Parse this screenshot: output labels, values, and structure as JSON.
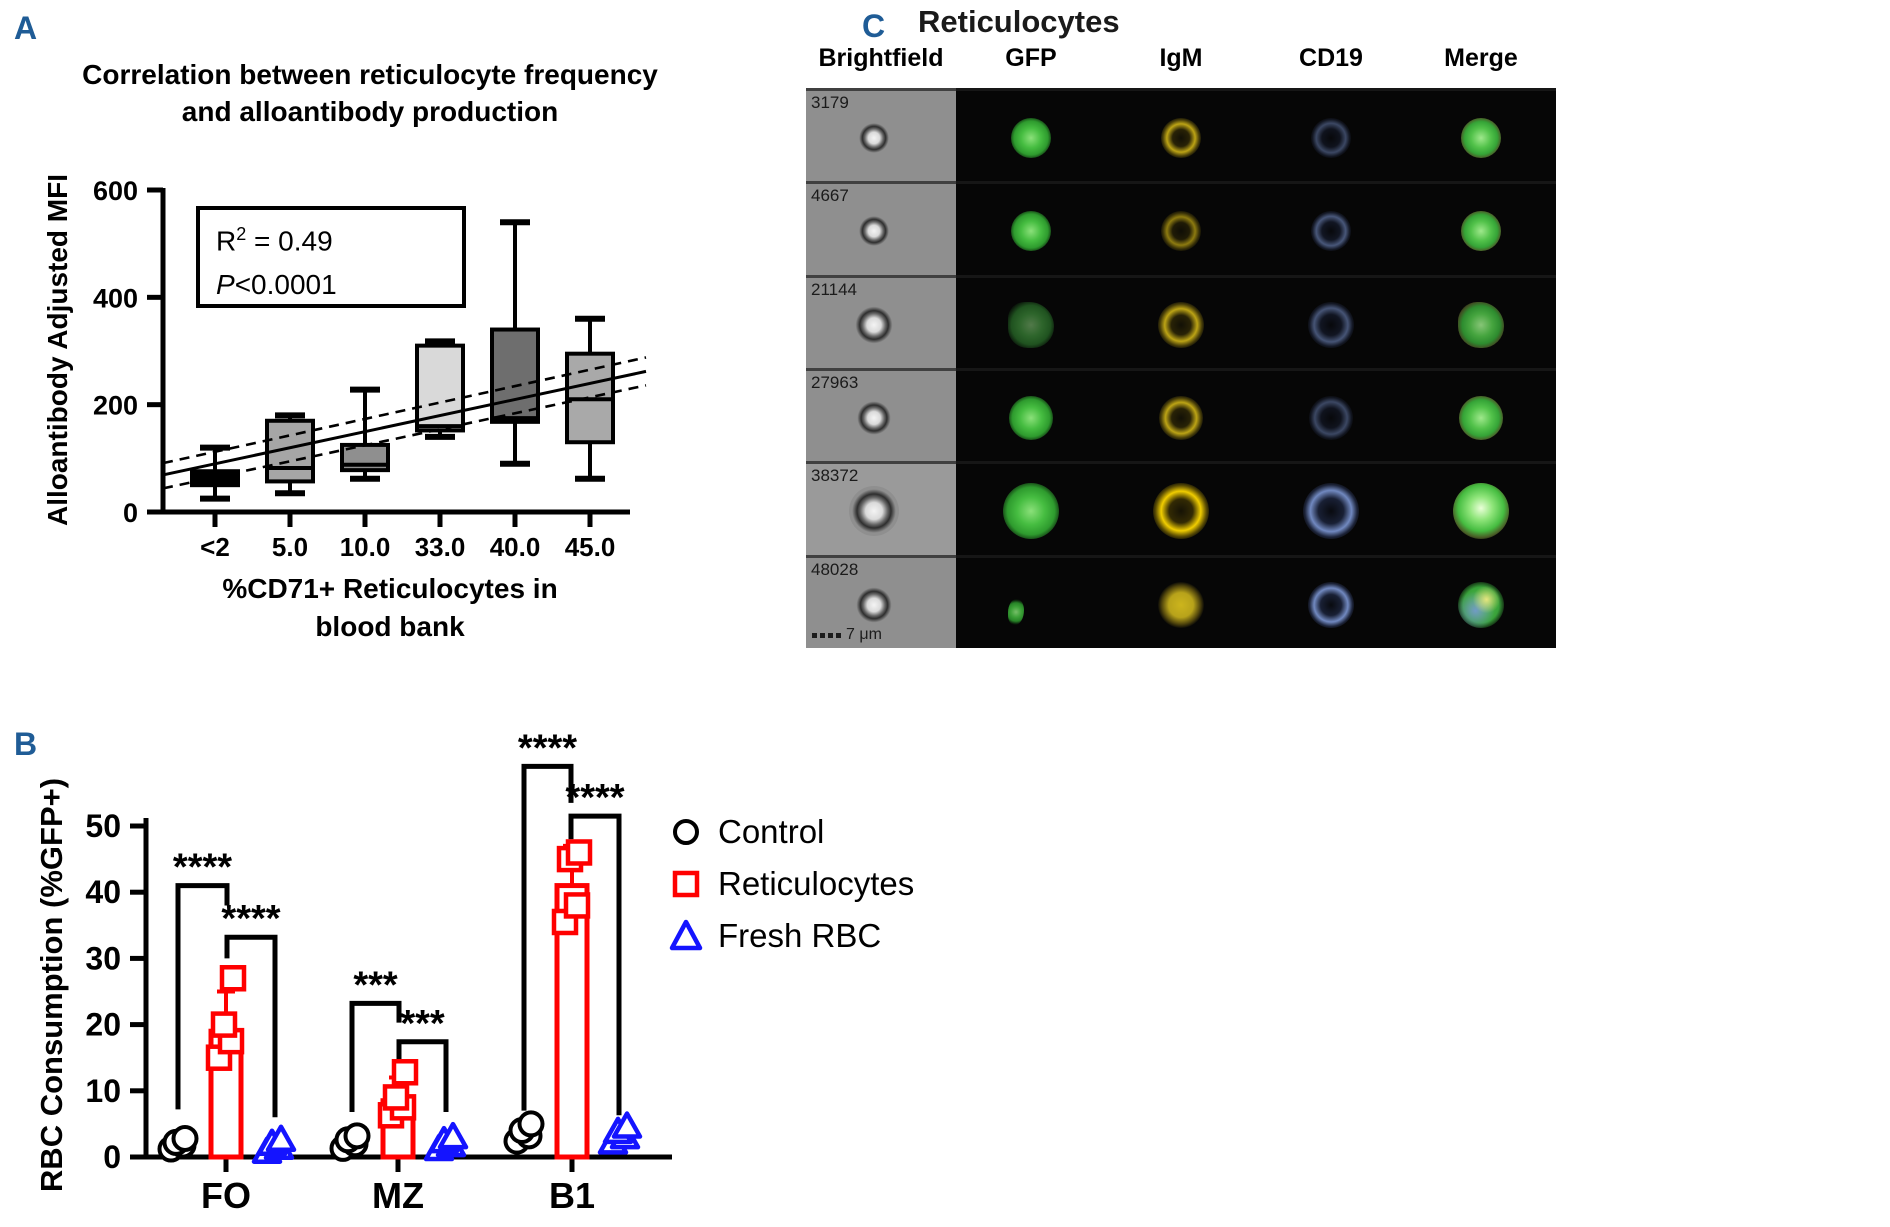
{
  "colors": {
    "panel_label_blue": "#1f5c96",
    "control_black": "#000000",
    "reticulocytes_red": "#ff0000",
    "fresh_rbc_blue": "#1414ff",
    "gfp_green": "#46bd41",
    "igm_yellow": "#c6ac16",
    "cd19_blue": "#84a0e1"
  },
  "panels": {
    "a": {
      "label": "A",
      "title_line1": "Correlation between reticulocyte frequency",
      "title_line2": "and alloantibody production",
      "y_label": "Alloantibody Adjusted MFI",
      "x_label_line1": "%CD71+ Reticulocytes in",
      "x_label_line2": "blood bank",
      "annotation": {
        "r_base": "R",
        "r_exp": "2",
        "r_eq": " = 0.49",
        "p_symbol": "P",
        "p_value": "<0.0001"
      }
    },
    "b": {
      "label": "B",
      "y_label": "RBC Consumption (%GFP+)"
    },
    "c": {
      "label": "C",
      "title": "Reticulocytes",
      "columns": [
        "Brightfield",
        "GFP",
        "IgM",
        "CD19",
        "Merge"
      ],
      "rows": [
        {
          "id": "3179"
        },
        {
          "id": "4667"
        },
        {
          "id": "21144"
        },
        {
          "id": "27963"
        },
        {
          "id": "38372"
        },
        {
          "id": "48028"
        }
      ],
      "scale_bar_label": "7 μm"
    }
  },
  "chart_data": [
    {
      "type": "boxplot",
      "title": "Correlation between reticulocyte frequency and alloantibody production",
      "xlabel": "%CD71+ Reticulocytes in blood bank",
      "ylabel": "Alloantibody Adjusted MFI",
      "categories": [
        "<2",
        "5.0",
        "10.0",
        "33.0",
        "40.0",
        "45.0"
      ],
      "ylim": [
        0,
        600
      ],
      "yticks": [
        0,
        200,
        400,
        600
      ],
      "grid": false,
      "boxes": [
        {
          "category": "<2",
          "min": 25,
          "q1": 50,
          "median": 65,
          "q3": 76,
          "max": 120,
          "fill": "#000000"
        },
        {
          "category": "5.0",
          "min": 35,
          "q1": 57,
          "median": 82,
          "q3": 170,
          "max": 180,
          "fill": "#a6a6a6"
        },
        {
          "category": "10.0",
          "min": 62,
          "q1": 78,
          "median": 88,
          "q3": 125,
          "max": 228,
          "fill": "#8f8f8f"
        },
        {
          "category": "33.0",
          "min": 140,
          "q1": 152,
          "median": 160,
          "q3": 310,
          "max": 318,
          "fill": "#d9d9d9"
        },
        {
          "category": "40.0",
          "min": 90,
          "q1": 168,
          "median": 175,
          "q3": 340,
          "max": 540,
          "fill": "#6e6e6e"
        },
        {
          "category": "45.0",
          "min": 62,
          "q1": 130,
          "median": 210,
          "q3": 295,
          "max": 360,
          "fill": "#a9a9a9"
        }
      ],
      "regression": {
        "solid_line_endpoints_mfi": [
          69,
          262
        ],
        "upper_dashed_endpoints_mfi": [
          91,
          288
        ],
        "lower_dashed_endpoints_mfi": [
          44,
          236
        ]
      },
      "annotation": {
        "r_squared": 0.49,
        "p_value": "<0.0001"
      }
    },
    {
      "type": "bar",
      "ylabel": "RBC Consumption (%GFP+)",
      "categories": [
        "FO",
        "MZ",
        "B1"
      ],
      "ylim": [
        0,
        50
      ],
      "yticks": [
        0,
        10,
        20,
        30,
        40,
        50
      ],
      "legend_position": "right",
      "series": [
        {
          "name": "Control",
          "marker": "circle",
          "color": "#000000",
          "points": {
            "FO": [
              1.2,
              1.8,
              2.2,
              2.8
            ],
            "MZ": [
              1.3,
              2.0,
              2.6,
              3.2
            ],
            "B1": [
              2.4,
              3.2,
              4.0,
              5.0
            ]
          }
        },
        {
          "name": "Reticulocytes",
          "marker": "square",
          "color": "#ff0000",
          "bar_mean": {
            "FO": 19,
            "MZ": 8.5,
            "B1": 41
          },
          "error_top": {
            "FO": 25,
            "MZ": 12,
            "B1": 47
          },
          "points": {
            "FO": [
              15,
              17.5,
              20,
              27
            ],
            "MZ": [
              6.3,
              7.5,
              9,
              12.8
            ],
            "B1": [
              35.5,
              38,
              45,
              46
            ]
          }
        },
        {
          "name": "Fresh RBC",
          "marker": "triangle",
          "color": "#1414ff",
          "points": {
            "FO": [
              0.8,
              1.4,
              2.0,
              2.6
            ],
            "MZ": [
              1.2,
              1.8,
              2.4,
              3.0
            ],
            "B1": [
              2.2,
              3.0,
              3.8,
              4.6
            ]
          }
        }
      ],
      "significance": [
        {
          "group": "FO",
          "pair": "Control vs Reticulocytes",
          "stars": "****"
        },
        {
          "group": "FO",
          "pair": "Reticulocytes vs Fresh RBC",
          "stars": "****"
        },
        {
          "group": "MZ",
          "pair": "Control vs Reticulocytes",
          "stars": "***"
        },
        {
          "group": "MZ",
          "pair": "Reticulocytes vs Fresh RBC",
          "stars": "***"
        },
        {
          "group": "B1",
          "pair": "Control vs Reticulocytes",
          "stars": "****"
        },
        {
          "group": "B1",
          "pair": "Reticulocytes vs Fresh RBC",
          "stars": "****"
        }
      ]
    }
  ]
}
